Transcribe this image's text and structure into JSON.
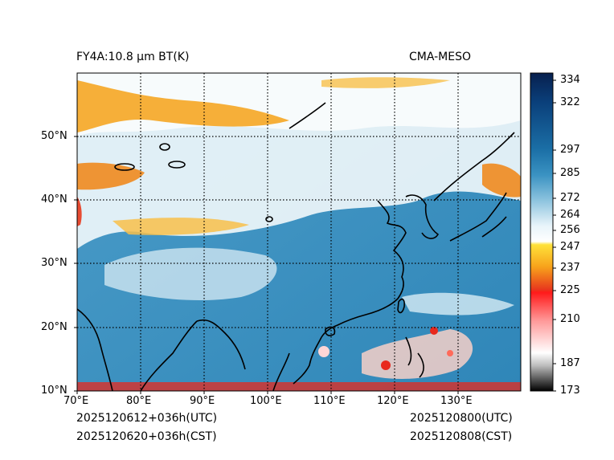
{
  "header": {
    "product_title": "FY4A:10.8 µm BT(K)",
    "model_name": "CMA-MESO"
  },
  "map": {
    "x_ticks": [
      "70°E",
      "80°E",
      "90°E",
      "100°E",
      "110°E",
      "120°E",
      "130°E"
    ],
    "y_ticks": [
      "50°N",
      "40°N",
      "30°N",
      "20°N",
      "10°N"
    ],
    "lon_range": [
      70,
      140
    ],
    "lat_range": [
      10,
      60
    ]
  },
  "colorbar": {
    "unit": "K",
    "labels": [
      "334",
      "322",
      "297",
      "285",
      "272",
      "264",
      "256",
      "247",
      "237",
      "225",
      "210",
      "187",
      "173"
    ]
  },
  "footer": {
    "init_utc": "2025120612+036h(UTC)",
    "init_cst": "2025120620+036h(CST)",
    "valid_utc": "2025120800(UTC)",
    "valid_cst": "2025120808(CST)"
  },
  "colors": {
    "ocean": "#2e86b8",
    "cloud_white": "#f3f8fb",
    "cloud_orange": "#f5a623",
    "cloud_red": "#e8281c",
    "coast": "#000000"
  }
}
